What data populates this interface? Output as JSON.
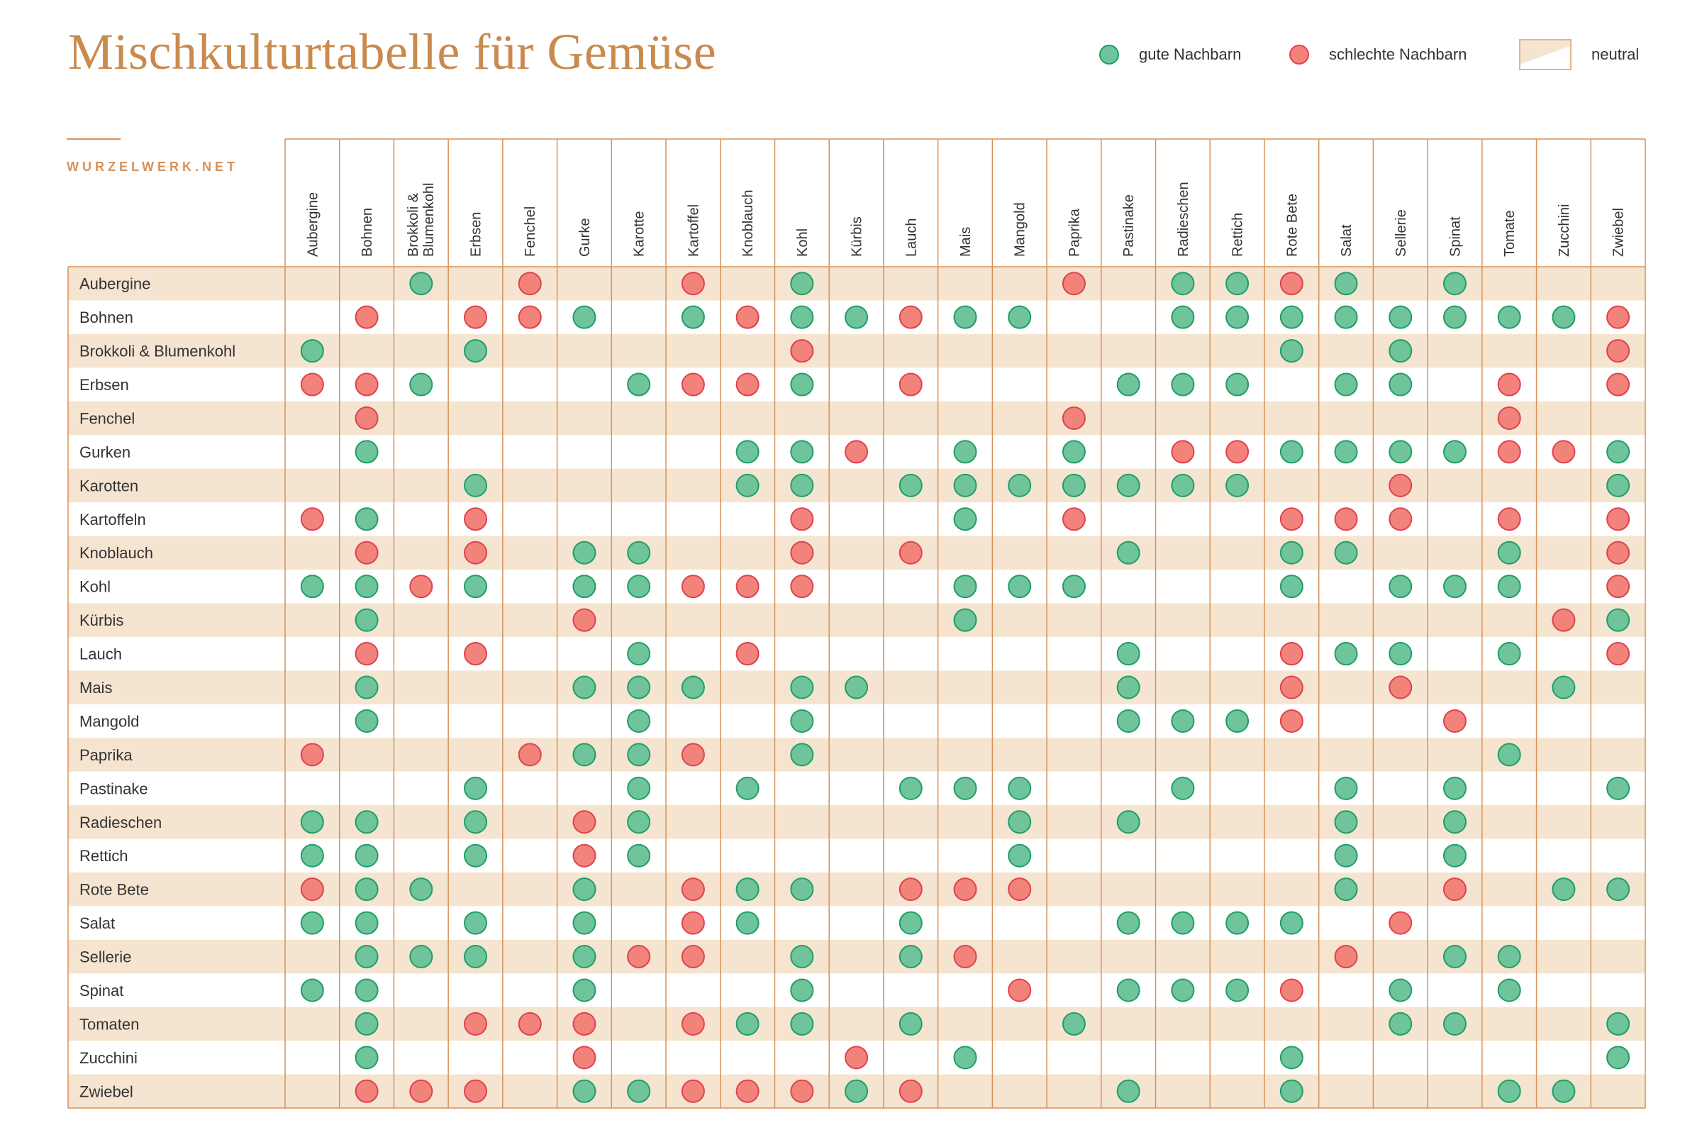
{
  "title": "Mischkulturtabelle für Gemüse",
  "brand": "WURZELWERK.NET",
  "legend": {
    "good": {
      "label": "gute Nachbarn",
      "color": "#6fc49b"
    },
    "bad": {
      "label": "schlechte Nachbarn",
      "color": "#f2837a"
    },
    "neutral": {
      "label": "neutral",
      "color": "#f5e4d0"
    }
  },
  "colors": {
    "good_fill": "#6fc49b",
    "good_stroke": "#1f9e65",
    "bad_fill": "#f2837a",
    "bad_stroke": "#e0414f",
    "band": "#f5e4d0",
    "grid": "#d6925a"
  },
  "chart_data": {
    "type": "table",
    "title": "Mischkulturtabelle für Gemüse",
    "columns": [
      "Aubergine",
      "Bohnen",
      "Brokkoli & Blumenkohl",
      "Erbsen",
      "Fenchel",
      "Gurke",
      "Karotte",
      "Kartoffel",
      "Knoblauch",
      "Kohl",
      "Kürbis",
      "Lauch",
      "Mais",
      "Mangold",
      "Paprika",
      "Pastinake",
      "Radieschen",
      "Rettich",
      "Rote Bete",
      "Salat",
      "Sellerie",
      "Spinat",
      "Tomate",
      "Zucchini",
      "Zwiebel"
    ],
    "rows": [
      {
        "label": "Aubergine",
        "cells": "__G_B__B_G____B_GGBG_G___"
      },
      {
        "label": "Bohnen",
        "cells": "_B_BBG_GBGGBGG__GGGGGGGGB"
      },
      {
        "label": "Brokkoli & Blumenkohl",
        "cells": "G__G_____B________G_G___B"
      },
      {
        "label": "Erbsen",
        "cells": "BBG___GBBG_B___GGG_GG_B_B"
      },
      {
        "label": "Fenchel",
        "cells": "_B____________B_______B__"
      },
      {
        "label": "Gurken",
        "cells": "_G______GGB_G_G_BBGGGGBBG"
      },
      {
        "label": "Karotten",
        "cells": "___G____GG_GGGGGGG__B___G"
      },
      {
        "label": "Kartoffeln",
        "cells": "BG_B_____B__G_B___BBB_B_B"
      },
      {
        "label": "Knoblauch",
        "cells": "_B_B_GG__B_B___G__GG__G_B"
      },
      {
        "label": "Kohl",
        "cells": "GGBG_GGBBB__GGG___G_GGG_B"
      },
      {
        "label": "Kürbis",
        "cells": "_G___B______G__________BG"
      },
      {
        "label": "Lauch",
        "cells": "_B_B__G_B______G__BGG_G_B"
      },
      {
        "label": "Mais",
        "cells": "_G___GGG_GG____G__B_B__G_"
      },
      {
        "label": "Mangold",
        "cells": "_G____G__G_____GGGB__B___"
      },
      {
        "label": "Paprika",
        "cells": "B___BGGB_G____________G__"
      },
      {
        "label": "Pastinake",
        "cells": "___G__G_G__GGG__G__G_G__G"
      },
      {
        "label": "Radieschen",
        "cells": "GG_G_BG______G_G___G_G___"
      },
      {
        "label": "Rettich",
        "cells": "GG_G_BG______G_____G_G___"
      },
      {
        "label": "Rote Bete",
        "cells": "BGG__G_BGG_BBB_____G_B_GG"
      },
      {
        "label": "Salat",
        "cells": "GG_G_G_BG__G___GGGG_B____"
      },
      {
        "label": "Sellerie",
        "cells": "_GGG_GBB_G_GB______B_GG__"
      },
      {
        "label": "Spinat",
        "cells": "GG___G___G___B_GGGB_G_G__"
      },
      {
        "label": "Tomaten",
        "cells": "_G_BBB_BGG_G__G_____GG__G"
      },
      {
        "label": "Zucchini",
        "cells": "_G___B____B_G_____G_____G"
      },
      {
        "label": "Zwiebel",
        "cells": "_BBB_GGBBBGB___G__G___GG_"
      }
    ],
    "cell_codes": {
      "G": "gute Nachbarn",
      "B": "schlechte Nachbarn",
      "_": "neutral"
    }
  }
}
